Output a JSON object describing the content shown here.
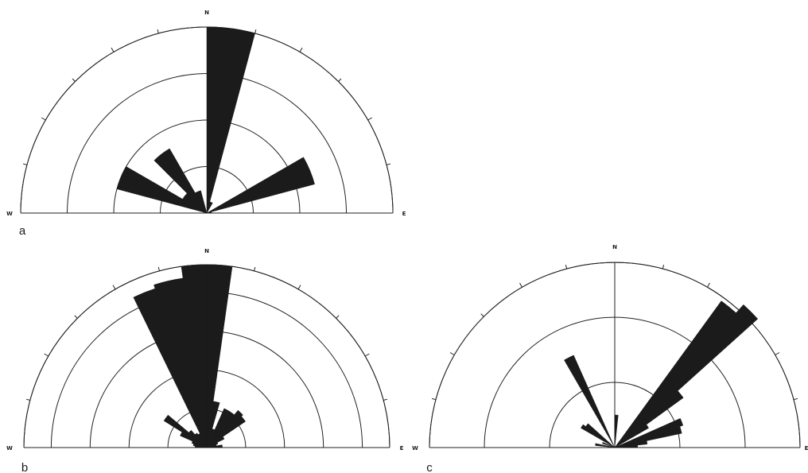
{
  "chart_data": [
    {
      "type": "rose",
      "panel_label": "a",
      "directions": {
        "north": "N",
        "west": "W",
        "east": "E"
      },
      "rings": 4,
      "petals": [
        {
          "from_deg": 0,
          "to_deg": 15,
          "value": 4.0
        },
        {
          "from_deg": 15,
          "to_deg": 30,
          "value": 0.25
        },
        {
          "from_deg": 60,
          "to_deg": 75,
          "value": 2.4
        },
        {
          "from_deg": 75,
          "to_deg": 90,
          "value": 0.1
        },
        {
          "from_deg": 285,
          "to_deg": 300,
          "value": 2.0
        },
        {
          "from_deg": 300,
          "to_deg": 315,
          "value": 0.6
        },
        {
          "from_deg": 315,
          "to_deg": 330,
          "value": 1.6
        },
        {
          "from_deg": 330,
          "to_deg": 345,
          "value": 0.5
        }
      ]
    },
    {
      "type": "rose",
      "panel_label": "b",
      "directions": {
        "north": "N",
        "west": "W",
        "east": "E"
      },
      "rings": 5,
      "petals": [
        {
          "from_deg": 0,
          "to_deg": 8,
          "value": 4.7
        },
        {
          "from_deg": 8,
          "to_deg": 16,
          "value": 1.2
        },
        {
          "from_deg": 16,
          "to_deg": 24,
          "value": 0.5
        },
        {
          "from_deg": 24,
          "to_deg": 32,
          "value": 1.1
        },
        {
          "from_deg": 32,
          "to_deg": 40,
          "value": 1.1
        },
        {
          "from_deg": 40,
          "to_deg": 48,
          "value": 1.25
        },
        {
          "from_deg": 48,
          "to_deg": 56,
          "value": 1.2
        },
        {
          "from_deg": 56,
          "to_deg": 64,
          "value": 0.5
        },
        {
          "from_deg": 64,
          "to_deg": 72,
          "value": 0.3
        },
        {
          "from_deg": 72,
          "to_deg": 80,
          "value": 0.25
        },
        {
          "from_deg": 80,
          "to_deg": 90,
          "value": 0.4
        },
        {
          "from_deg": 270,
          "to_deg": 278,
          "value": 0.3
        },
        {
          "from_deg": 278,
          "to_deg": 286,
          "value": 0.35
        },
        {
          "from_deg": 286,
          "to_deg": 294,
          "value": 0.4
        },
        {
          "from_deg": 294,
          "to_deg": 302,
          "value": 0.75
        },
        {
          "from_deg": 302,
          "to_deg": 310,
          "value": 1.3
        },
        {
          "from_deg": 310,
          "to_deg": 318,
          "value": 0.6
        },
        {
          "from_deg": 318,
          "to_deg": 326,
          "value": 0.45
        },
        {
          "from_deg": 326,
          "to_deg": 334,
          "value": 0.4
        },
        {
          "from_deg": 334,
          "to_deg": 342,
          "value": 4.3
        },
        {
          "from_deg": 342,
          "to_deg": 352,
          "value": 4.4
        },
        {
          "from_deg": 352,
          "to_deg": 360,
          "value": 4.7
        }
      ]
    },
    {
      "type": "rose",
      "panel_label": "c",
      "directions": {
        "north": "N",
        "west": "W",
        "east": "E"
      },
      "rings": 3,
      "petals": [
        {
          "from_deg": 0,
          "to_deg": 6,
          "value": 0.5
        },
        {
          "from_deg": 36,
          "to_deg": 42,
          "value": 2.78
        },
        {
          "from_deg": 42,
          "to_deg": 48,
          "value": 2.95
        },
        {
          "from_deg": 48,
          "to_deg": 54,
          "value": 1.3
        },
        {
          "from_deg": 54,
          "to_deg": 60,
          "value": 0.6
        },
        {
          "from_deg": 66,
          "to_deg": 72,
          "value": 1.1
        },
        {
          "from_deg": 72,
          "to_deg": 78,
          "value": 1.05
        },
        {
          "from_deg": 78,
          "to_deg": 84,
          "value": 0.5
        },
        {
          "from_deg": 84,
          "to_deg": 90,
          "value": 0.35
        },
        {
          "from_deg": 276,
          "to_deg": 282,
          "value": 0.3
        },
        {
          "from_deg": 288,
          "to_deg": 294,
          "value": 0.2
        },
        {
          "from_deg": 300,
          "to_deg": 306,
          "value": 0.6
        },
        {
          "from_deg": 306,
          "to_deg": 312,
          "value": 0.55
        },
        {
          "from_deg": 330,
          "to_deg": 336,
          "value": 1.55
        }
      ]
    }
  ]
}
